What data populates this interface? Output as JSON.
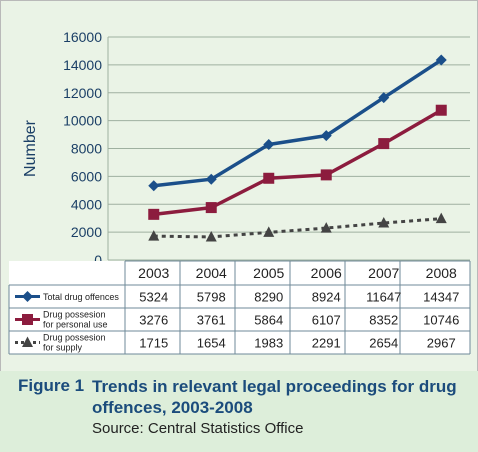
{
  "chart_data": {
    "type": "line",
    "ylabel": "Number",
    "ylim": [
      0,
      16000
    ],
    "yticks": [
      0,
      2000,
      4000,
      6000,
      8000,
      10000,
      12000,
      14000,
      16000
    ],
    "categories": [
      "2003",
      "2004",
      "2005",
      "2006",
      "2007",
      "2008"
    ],
    "grid": "horizontal",
    "legend_placement": "left of data table",
    "series": [
      {
        "name": "Total drug offences",
        "label_lines": [
          "Total drug offences"
        ],
        "marker": "diamond",
        "color": "#1b4f8a",
        "dashed": false,
        "values": [
          5324,
          5798,
          8290,
          8924,
          11647,
          14347
        ]
      },
      {
        "name": "Drug possesion for personal use",
        "label_lines": [
          "Drug possesion",
          "for personal use"
        ],
        "marker": "square",
        "color": "#8c1c3e",
        "dashed": false,
        "values": [
          3276,
          3761,
          5864,
          6107,
          8352,
          10746
        ]
      },
      {
        "name": "Drug possesion for supply",
        "label_lines": [
          "Drug possesion",
          "for supply"
        ],
        "marker": "triangle",
        "color": "#444444",
        "dashed": true,
        "values": [
          1715,
          1654,
          1983,
          2291,
          2654,
          2967
        ]
      }
    ]
  },
  "caption": {
    "figure_number": "Figure 1",
    "title": "Trends in relevant legal proceedings for drug offences, 2003-2008",
    "source": "Source: Central Statistics Office"
  }
}
